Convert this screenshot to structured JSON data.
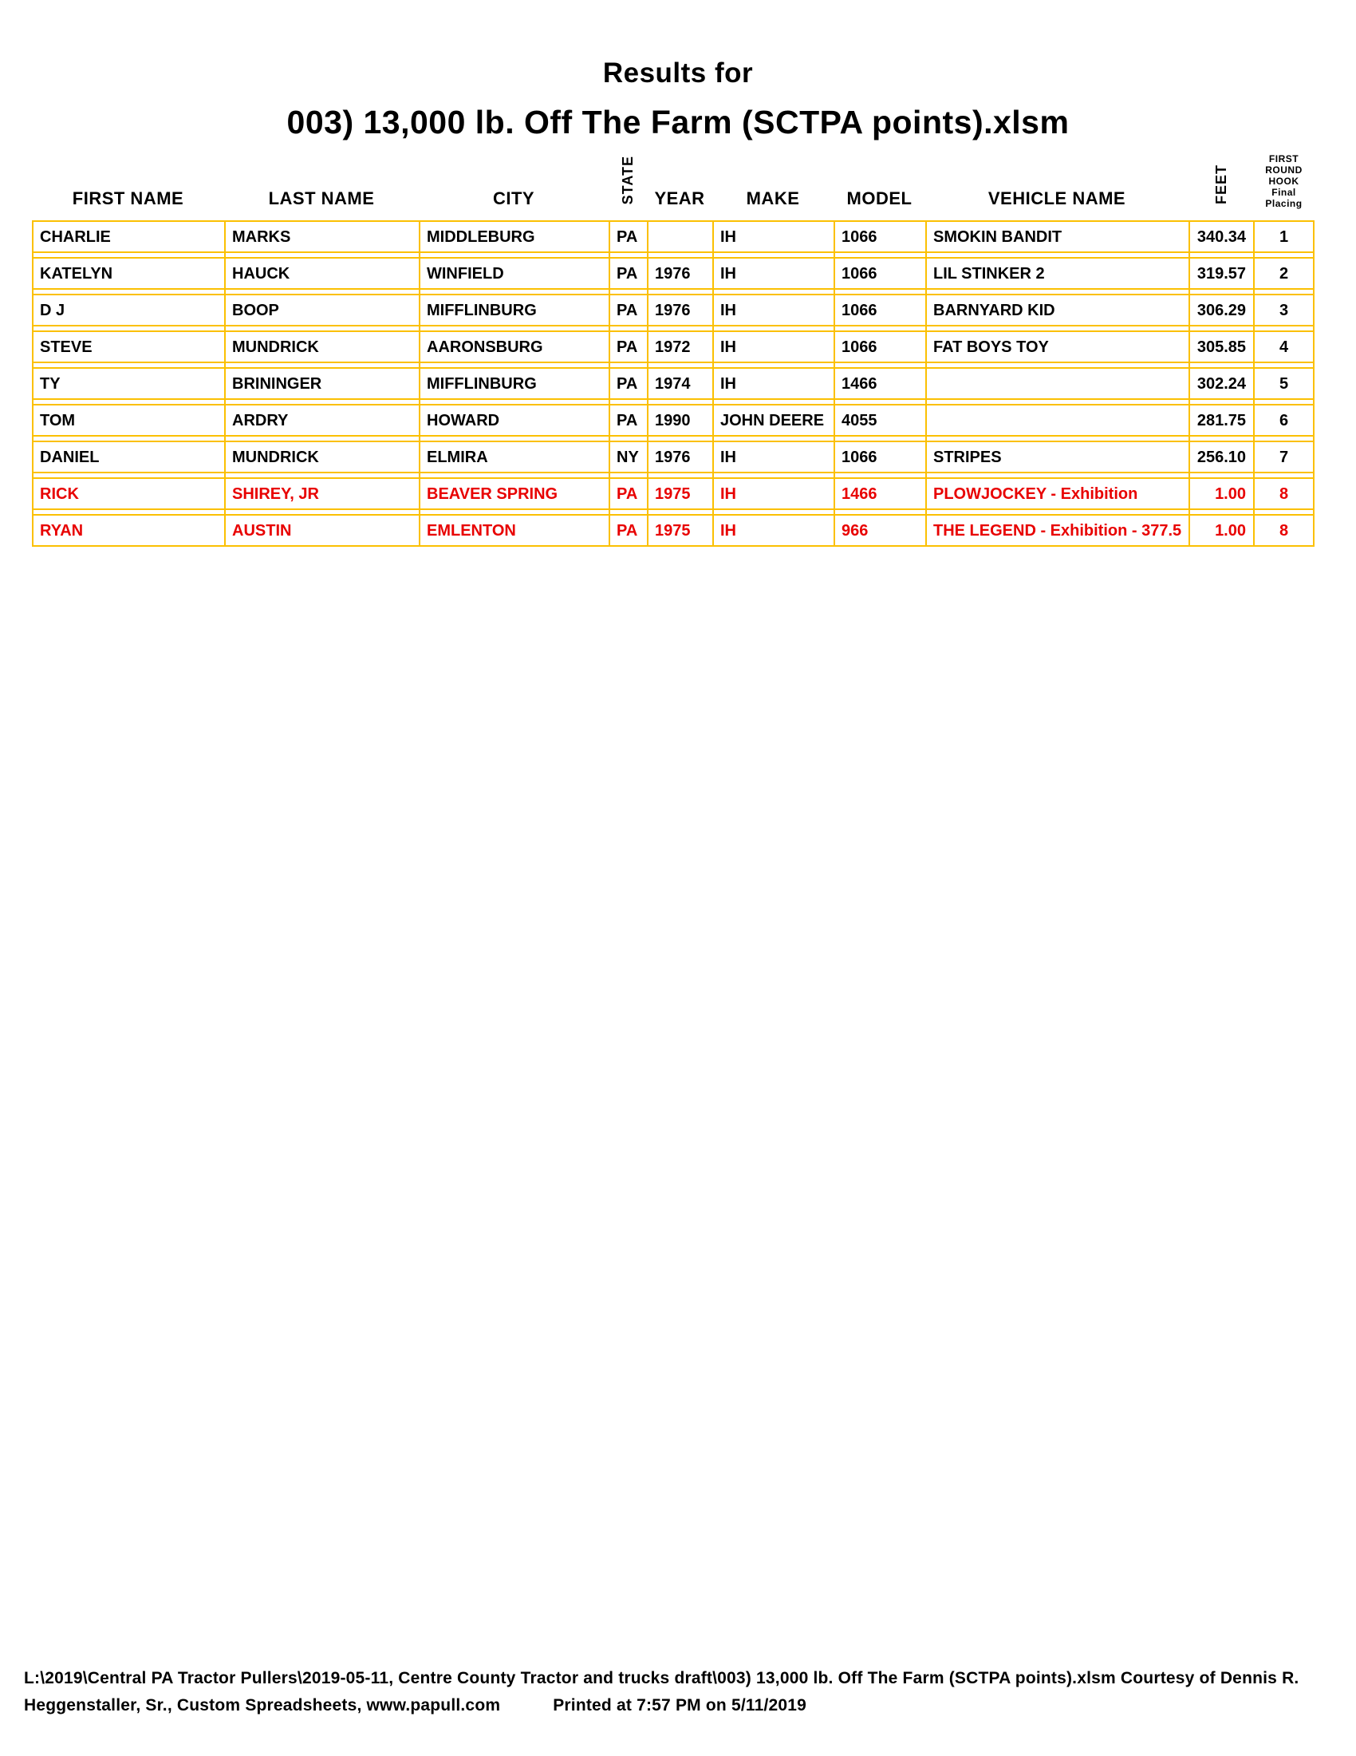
{
  "header": {
    "title": "Results for",
    "subtitle": "003) 13,000 lb. Off The Farm (SCTPA points).xlsm"
  },
  "table": {
    "columns": [
      "FIRST NAME",
      "LAST NAME",
      "CITY",
      "STATE",
      "YEAR",
      "MAKE",
      "MODEL",
      "VEHICLE NAME",
      "FEET"
    ],
    "placing_header": {
      "line1": "FIRST ROUND",
      "line2": "HOOK",
      "line3": "Final Placing"
    },
    "rows": [
      {
        "first": "CHARLIE",
        "last": "MARKS",
        "city": "MIDDLEBURG",
        "state": "PA",
        "year": "",
        "make": "IH",
        "model": "1066",
        "vehicle": "SMOKIN BANDIT",
        "feet": "340.34",
        "placing": "1",
        "highlight": false
      },
      {
        "first": "KATELYN",
        "last": "HAUCK",
        "city": "WINFIELD",
        "state": "PA",
        "year": "1976",
        "make": "IH",
        "model": "1066",
        "vehicle": "LIL STINKER 2",
        "feet": "319.57",
        "placing": "2",
        "highlight": false
      },
      {
        "first": "D J",
        "last": "BOOP",
        "city": "MIFFLINBURG",
        "state": "PA",
        "year": "1976",
        "make": "IH",
        "model": "1066",
        "vehicle": "BARNYARD KID",
        "feet": "306.29",
        "placing": "3",
        "highlight": false
      },
      {
        "first": "STEVE",
        "last": "MUNDRICK",
        "city": "AARONSBURG",
        "state": "PA",
        "year": "1972",
        "make": "IH",
        "model": "1066",
        "vehicle": "FAT BOYS TOY",
        "feet": "305.85",
        "placing": "4",
        "highlight": false
      },
      {
        "first": "TY",
        "last": "BRININGER",
        "city": "MIFFLINBURG",
        "state": "PA",
        "year": "1974",
        "make": "IH",
        "model": "1466",
        "vehicle": "",
        "feet": "302.24",
        "placing": "5",
        "highlight": false
      },
      {
        "first": "TOM",
        "last": "ARDRY",
        "city": "HOWARD",
        "state": "PA",
        "year": "1990",
        "make": "JOHN DEERE",
        "model": "4055",
        "vehicle": "",
        "feet": "281.75",
        "placing": "6",
        "highlight": false
      },
      {
        "first": "DANIEL",
        "last": "MUNDRICK",
        "city": "ELMIRA",
        "state": "NY",
        "year": "1976",
        "make": "IH",
        "model": "1066",
        "vehicle": "STRIPES",
        "feet": "256.10",
        "placing": "7",
        "highlight": false
      },
      {
        "first": "RICK",
        "last": "SHIREY, JR",
        "city": "BEAVER SPRING",
        "state": "PA",
        "year": "1975",
        "make": "IH",
        "model": "1466",
        "vehicle": "PLOWJOCKEY - Exhibition",
        "feet": "1.00",
        "placing": "8",
        "highlight": true
      },
      {
        "first": "RYAN",
        "last": "AUSTIN",
        "city": "EMLENTON",
        "state": "PA",
        "year": "1975",
        "make": "IH",
        "model": "966",
        "vehicle": "THE LEGEND - Exhibition - 377.5",
        "feet": "1.00",
        "placing": "8",
        "highlight": true
      }
    ]
  },
  "colors": {
    "table_border": "#FBC002",
    "exhibition_row_text": "#E80000",
    "text": "#000000"
  },
  "footer": {
    "line1": "L:\\2019\\Central PA Tractor Pullers\\2019-05-11, Centre County Tractor and trucks draft\\003) 13,000 lb. Off The Farm (SCTPA points).xlsm  Courtesy of Dennis R.",
    "line2_left": "Heggenstaller, Sr., Custom Spreadsheets, www.papull.com",
    "line2_right": "Printed at 7:57 PM on 5/11/2019"
  }
}
